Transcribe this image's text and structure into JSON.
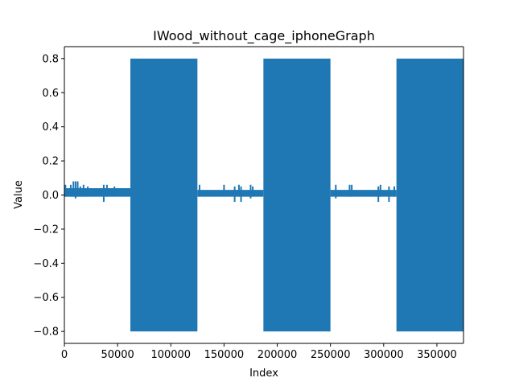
{
  "chart_data": {
    "type": "line",
    "title": "IWood_without_cage_iphoneGraph",
    "xlabel": "Index",
    "ylabel": "Value",
    "xlim": [
      0,
      375000
    ],
    "ylim": [
      -0.87,
      0.87
    ],
    "grid": false,
    "legend": false,
    "line_color": "#1f77b4",
    "x_ticks": [
      0,
      50000,
      100000,
      150000,
      200000,
      250000,
      300000,
      350000
    ],
    "x_tick_labels": [
      "0",
      "50000",
      "100000",
      "150000",
      "200000",
      "250000",
      "300000",
      "350000"
    ],
    "y_ticks": [
      -0.8,
      -0.6,
      -0.4,
      -0.2,
      0.0,
      0.2,
      0.4,
      0.6,
      0.8
    ],
    "y_tick_labels": [
      "−0.8",
      "−0.6",
      "−0.4",
      "−0.2",
      "0.0",
      "0.2",
      "0.4",
      "0.6",
      "0.8"
    ],
    "series": [
      {
        "segments": [
          {
            "x_start": 0,
            "x_end": 62000,
            "min": -0.01,
            "max": 0.04,
            "kind": "quiet"
          },
          {
            "x_start": 62000,
            "x_end": 125000,
            "min": -0.8,
            "max": 0.8,
            "kind": "active"
          },
          {
            "x_start": 125000,
            "x_end": 187000,
            "min": -0.01,
            "max": 0.03,
            "kind": "quiet"
          },
          {
            "x_start": 187000,
            "x_end": 250000,
            "min": -0.8,
            "max": 0.8,
            "kind": "active"
          },
          {
            "x_start": 250000,
            "x_end": 312000,
            "min": -0.01,
            "max": 0.03,
            "kind": "quiet"
          },
          {
            "x_start": 312000,
            "x_end": 375000,
            "min": -0.8,
            "max": 0.8,
            "kind": "active"
          }
        ],
        "spikes": [
          {
            "x": 1000,
            "min": -0.01,
            "max": 0.06
          },
          {
            "x": 6000,
            "min": -0.01,
            "max": 0.06
          },
          {
            "x": 8500,
            "min": -0.01,
            "max": 0.08
          },
          {
            "x": 10500,
            "min": -0.02,
            "max": 0.08
          },
          {
            "x": 12500,
            "min": -0.01,
            "max": 0.08
          },
          {
            "x": 15000,
            "min": -0.01,
            "max": 0.05
          },
          {
            "x": 18000,
            "min": -0.01,
            "max": 0.06
          },
          {
            "x": 22000,
            "min": -0.01,
            "max": 0.05
          },
          {
            "x": 37000,
            "min": -0.04,
            "max": 0.06
          },
          {
            "x": 40000,
            "min": -0.01,
            "max": 0.06
          },
          {
            "x": 47000,
            "min": -0.01,
            "max": 0.05
          },
          {
            "x": 127000,
            "min": -0.01,
            "max": 0.06
          },
          {
            "x": 150000,
            "min": -0.01,
            "max": 0.06
          },
          {
            "x": 160000,
            "min": -0.04,
            "max": 0.05
          },
          {
            "x": 164000,
            "min": -0.01,
            "max": 0.06
          },
          {
            "x": 166000,
            "min": -0.04,
            "max": 0.05
          },
          {
            "x": 175000,
            "min": -0.02,
            "max": 0.06
          },
          {
            "x": 177000,
            "min": -0.01,
            "max": 0.05
          },
          {
            "x": 255000,
            "min": -0.02,
            "max": 0.06
          },
          {
            "x": 268000,
            "min": -0.01,
            "max": 0.06
          },
          {
            "x": 270000,
            "min": -0.01,
            "max": 0.06
          },
          {
            "x": 295000,
            "min": -0.04,
            "max": 0.05
          },
          {
            "x": 297000,
            "min": -0.01,
            "max": 0.06
          },
          {
            "x": 305000,
            "min": -0.04,
            "max": 0.05
          },
          {
            "x": 310000,
            "min": -0.01,
            "max": 0.05
          }
        ]
      }
    ]
  }
}
